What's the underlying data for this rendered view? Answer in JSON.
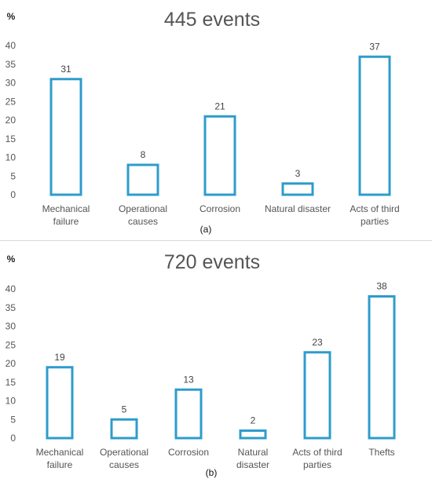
{
  "chart_data": [
    {
      "type": "bar",
      "title": "445 events",
      "ylabel": "%",
      "caption": "(a)",
      "categories": [
        [
          "Mechanical",
          "failure"
        ],
        [
          "Operational",
          "causes"
        ],
        [
          "Corrosion"
        ],
        [
          "Natural disaster"
        ],
        [
          "Acts of third",
          "parties"
        ]
      ],
      "values": [
        31,
        8,
        21,
        3,
        37
      ],
      "ylim": [
        0,
        40
      ],
      "yticks": [
        0,
        5,
        10,
        15,
        20,
        25,
        30,
        35,
        40
      ],
      "grid": false,
      "bar_style": "outline",
      "color": "#2e9ccc"
    },
    {
      "type": "bar",
      "title": "720 events",
      "ylabel": "%",
      "caption": "(b)",
      "categories": [
        [
          "Mechanical",
          "failure"
        ],
        [
          "Operational",
          "causes"
        ],
        [
          "Corrosion"
        ],
        [
          "Natural",
          "disaster"
        ],
        [
          "Acts of third",
          "parties"
        ],
        [
          "Thefts"
        ]
      ],
      "values": [
        19,
        5,
        13,
        2,
        23,
        38
      ],
      "ylim": [
        0,
        40
      ],
      "yticks": [
        0,
        5,
        10,
        15,
        20,
        25,
        30,
        35,
        40
      ],
      "grid": false,
      "bar_style": "outline",
      "color": "#2e9ccc"
    }
  ]
}
